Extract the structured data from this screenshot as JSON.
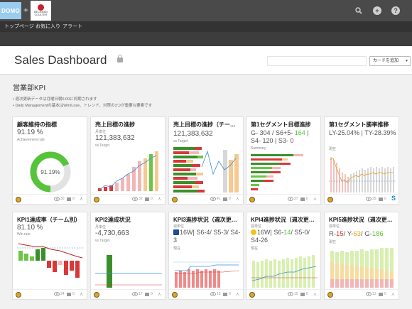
{
  "topbar": {
    "logo": "DOMO",
    "plus": "+",
    "partner_name": "BECKMAN COULTER",
    "icons": [
      "search-icon",
      "add-icon",
      "help-icon"
    ]
  },
  "nav": {
    "items": [
      "トップページ",
      "お気に入り",
      "アラート"
    ]
  },
  "header": {
    "title": "Sales Dashboard",
    "add_card_label": "カードを追加"
  },
  "section": {
    "title": "営業部KPI",
    "bullets": [
      "• 週次更新データは月曜日朝6:00に同期されます",
      "• Daily Managementの基本はWin/Lose、トレンド、対策の3つが重要な要素です"
    ]
  },
  "colors": {
    "green": "#55c43a",
    "red": "#d93838",
    "yellow": "#e3a11b",
    "blue": "#3d8fd6"
  },
  "cards": [
    {
      "title": "顧客維持の指標",
      "value": "91.19 %",
      "sub": "Achievement rate",
      "gauge_value": 91.19,
      "gauge_label": "91.19%",
      "views": "30",
      "comments": "0"
    },
    {
      "title": "売上目標の進捗",
      "unit": "月単位",
      "value": "121,383,632",
      "sub": "vs Target",
      "views": "32",
      "comments": "0"
    },
    {
      "title": "売上目標の進捗（チーム別）",
      "value": "121,383,632",
      "sub": "vs Target",
      "views": "41",
      "comments": "0"
    },
    {
      "title": "第1セグメント目標進捗",
      "value_parts": [
        "G- 304 / S6+5- ",
        "164",
        " | S4- 120 | S3- 0"
      ],
      "sub": "Summary",
      "views": "27",
      "comments": "0"
    },
    {
      "title": "第1セグメント勝率推移",
      "value": "LY-25.04% | TY-28.39%",
      "sub": "現在",
      "views": "29",
      "comments": "0",
      "badge": "S"
    },
    {
      "title": "KPI1達成率（チーム別）",
      "value": "81.10 %",
      "sub": "Win rate",
      "views": "24",
      "comments": "0"
    },
    {
      "title": "KPI2達成状況",
      "unit": "月単位",
      "value": "-4,730,663",
      "sub": "vs Target",
      "views": "17",
      "comments": "0"
    },
    {
      "title": "KPI3進捗状況（週次更新）",
      "unit": "週単位",
      "value_parts": [
        "16W| S6-4/ S5-3/ S4-3"
      ],
      "sub": "現在",
      "views": "15",
      "comments": "0"
    },
    {
      "title": "KPI4進捗状況（週次更新）",
      "unit": "週単位",
      "value_parts": [
        "16W| S6-",
        "14",
        "/ S5-0/ S4-26"
      ],
      "sub": "現在",
      "views": "15",
      "comments": "0"
    },
    {
      "title": "KPI5進捗状況（週次更新）",
      "unit": "週単位",
      "value_parts": [
        "R-",
        "15",
        "/ Y-",
        "63",
        "/ G-",
        "186"
      ],
      "sub": "現在",
      "views": "13",
      "comments": "0"
    }
  ]
}
